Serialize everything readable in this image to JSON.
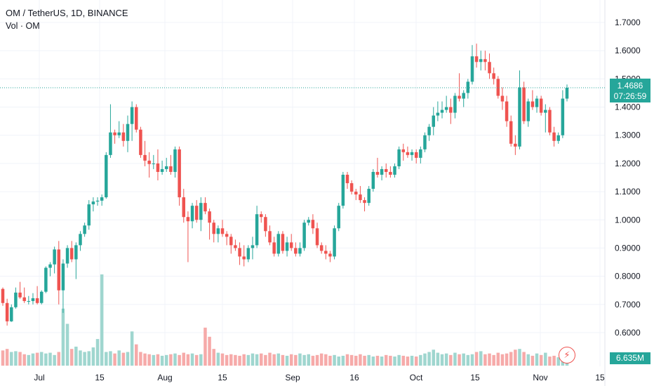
{
  "legend": {
    "title": "OM / TetherUS, 1D, BINANCE",
    "volume_label": "Vol · OM"
  },
  "price_tag": {
    "price": "1.4686",
    "countdown": "07:26:59"
  },
  "volume_tag": "6.635M",
  "icons": {
    "alert": "lightning-bolt-icon"
  },
  "colors": {
    "up": "#26a69a",
    "down": "#ef5350",
    "vol_up": "#9fd6cf",
    "vol_down": "#f6aaa9",
    "grid": "#f0f3fa",
    "last_price_line": "#26a69a"
  },
  "chart_data": {
    "type": "candlestick",
    "symbol": "OM / TetherUS",
    "interval": "1D",
    "exchange": "BINANCE",
    "y_ticks": [
      "1.7000",
      "1.6000",
      "1.5000",
      "1.4000",
      "1.3000",
      "1.2000",
      "1.1000",
      "1.0000",
      "0.9000",
      "0.8000",
      "0.7000",
      "0.6000"
    ],
    "y_range": [
      0.56,
      1.735
    ],
    "x_ticks": [
      "Jul",
      "15",
      "Aug",
      "15",
      "Sep",
      "16",
      "Oct",
      "15",
      "Nov",
      "15"
    ],
    "last_price": 1.4686,
    "grid": "on",
    "candles": [
      [
        0.755,
        0.76,
        0.695,
        0.705
      ],
      [
        0.705,
        0.72,
        0.625,
        0.64
      ],
      [
        0.64,
        0.7,
        0.638,
        0.69
      ],
      [
        0.69,
        0.76,
        0.685,
        0.742
      ],
      [
        0.742,
        0.78,
        0.72,
        0.725
      ],
      [
        0.725,
        0.76,
        0.705,
        0.712
      ],
      [
        0.712,
        0.73,
        0.7,
        0.712
      ],
      [
        0.712,
        0.74,
        0.7,
        0.722
      ],
      [
        0.722,
        0.765,
        0.7,
        0.705
      ],
      [
        0.705,
        0.75,
        0.7,
        0.745
      ],
      [
        0.745,
        0.835,
        0.74,
        0.83
      ],
      [
        0.83,
        0.85,
        0.8,
        0.842
      ],
      [
        0.842,
        0.905,
        0.81,
        0.895
      ],
      [
        0.895,
        0.925,
        0.7,
        0.75
      ],
      [
        0.75,
        0.86,
        0.67,
        0.845
      ],
      [
        0.845,
        0.91,
        0.83,
        0.9
      ],
      [
        0.9,
        0.925,
        0.85,
        0.86
      ],
      [
        0.86,
        0.92,
        0.79,
        0.91
      ],
      [
        0.91,
        0.96,
        0.89,
        0.95
      ],
      [
        0.95,
        0.99,
        0.94,
        0.98
      ],
      [
        0.98,
        1.07,
        0.965,
        1.055
      ],
      [
        1.055,
        1.08,
        1.03,
        1.065
      ],
      [
        1.065,
        1.08,
        1.05,
        1.068
      ],
      [
        1.068,
        1.09,
        1.05,
        1.08
      ],
      [
        1.08,
        1.24,
        1.075,
        1.23
      ],
      [
        1.23,
        1.41,
        1.22,
        1.31
      ],
      [
        1.31,
        1.32,
        1.27,
        1.3
      ],
      [
        1.3,
        1.35,
        1.29,
        1.31
      ],
      [
        1.31,
        1.34,
        1.26,
        1.28
      ],
      [
        1.28,
        1.37,
        1.24,
        1.34
      ],
      [
        1.34,
        1.42,
        1.28,
        1.4
      ],
      [
        1.4,
        1.41,
        1.31,
        1.32
      ],
      [
        1.32,
        1.33,
        1.22,
        1.23
      ],
      [
        1.23,
        1.28,
        1.19,
        1.21
      ],
      [
        1.21,
        1.24,
        1.15,
        1.198
      ],
      [
        1.198,
        1.23,
        1.18,
        1.2
      ],
      [
        1.2,
        1.25,
        1.14,
        1.17
      ],
      [
        1.17,
        1.21,
        1.16,
        1.18
      ],
      [
        1.18,
        1.22,
        1.17,
        1.19
      ],
      [
        1.19,
        1.23,
        1.16,
        1.17
      ],
      [
        1.17,
        1.26,
        1.15,
        1.25
      ],
      [
        1.25,
        1.26,
        1.05,
        1.08
      ],
      [
        1.08,
        1.11,
        0.99,
        1.01
      ],
      [
        1.01,
        1.03,
        0.85,
        0.995
      ],
      [
        0.995,
        1.06,
        0.97,
        1.05
      ],
      [
        1.05,
        1.07,
        0.99,
        1.0
      ],
      [
        1.0,
        1.08,
        0.96,
        1.06
      ],
      [
        1.06,
        1.08,
        1.02,
        1.03
      ],
      [
        1.03,
        1.04,
        0.93,
        0.99
      ],
      [
        0.99,
        1.0,
        0.92,
        0.95
      ],
      [
        0.95,
        0.98,
        0.92,
        0.97
      ],
      [
        0.97,
        1.0,
        0.94,
        0.95
      ],
      [
        0.95,
        0.96,
        0.91,
        0.94
      ],
      [
        0.94,
        0.95,
        0.88,
        0.91
      ],
      [
        0.91,
        0.93,
        0.89,
        0.9
      ],
      [
        0.9,
        0.92,
        0.84,
        0.87
      ],
      [
        0.87,
        0.91,
        0.835,
        0.86
      ],
      [
        0.86,
        0.91,
        0.85,
        0.9
      ],
      [
        0.9,
        0.94,
        0.86,
        0.91
      ],
      [
        0.91,
        1.05,
        0.9,
        1.02
      ],
      [
        1.02,
        1.03,
        0.99,
        1.01
      ],
      [
        1.01,
        1.02,
        0.94,
        0.96
      ],
      [
        0.96,
        0.98,
        0.91,
        0.92
      ],
      [
        0.92,
        0.94,
        0.87,
        0.88
      ],
      [
        0.88,
        0.96,
        0.87,
        0.95
      ],
      [
        0.95,
        0.96,
        0.88,
        0.89
      ],
      [
        0.89,
        0.94,
        0.87,
        0.92
      ],
      [
        0.92,
        0.95,
        0.89,
        0.9
      ],
      [
        0.9,
        0.92,
        0.87,
        0.88
      ],
      [
        0.88,
        0.92,
        0.87,
        0.9
      ],
      [
        0.9,
        1.0,
        0.89,
        0.99
      ],
      [
        0.99,
        1.01,
        0.98,
        1.0
      ],
      [
        1.0,
        1.02,
        0.95,
        0.97
      ],
      [
        0.97,
        0.99,
        0.9,
        0.91
      ],
      [
        0.91,
        0.92,
        0.88,
        0.89
      ],
      [
        0.89,
        0.91,
        0.86,
        0.88
      ],
      [
        0.88,
        0.89,
        0.85,
        0.87
      ],
      [
        0.87,
        0.98,
        0.86,
        0.97
      ],
      [
        0.97,
        1.06,
        0.96,
        1.05
      ],
      [
        1.05,
        1.17,
        1.04,
        1.16
      ],
      [
        1.16,
        1.17,
        1.11,
        1.13
      ],
      [
        1.13,
        1.14,
        1.09,
        1.1
      ],
      [
        1.1,
        1.11,
        1.07,
        1.09
      ],
      [
        1.09,
        1.12,
        1.06,
        1.07
      ],
      [
        1.07,
        1.08,
        1.03,
        1.06
      ],
      [
        1.06,
        1.12,
        1.05,
        1.11
      ],
      [
        1.11,
        1.18,
        1.1,
        1.17
      ],
      [
        1.17,
        1.22,
        1.15,
        1.16
      ],
      [
        1.16,
        1.19,
        1.14,
        1.18
      ],
      [
        1.18,
        1.2,
        1.15,
        1.17
      ],
      [
        1.17,
        1.19,
        1.15,
        1.16
      ],
      [
        1.16,
        1.2,
        1.15,
        1.19
      ],
      [
        1.19,
        1.26,
        1.18,
        1.25
      ],
      [
        1.25,
        1.27,
        1.21,
        1.24
      ],
      [
        1.24,
        1.26,
        1.22,
        1.23
      ],
      [
        1.23,
        1.25,
        1.21,
        1.24
      ],
      [
        1.24,
        1.25,
        1.2,
        1.22
      ],
      [
        1.22,
        1.26,
        1.2,
        1.25
      ],
      [
        1.25,
        1.31,
        1.24,
        1.3
      ],
      [
        1.3,
        1.34,
        1.28,
        1.33
      ],
      [
        1.33,
        1.4,
        1.3,
        1.37
      ],
      [
        1.37,
        1.42,
        1.35,
        1.38
      ],
      [
        1.38,
        1.42,
        1.36,
        1.39
      ],
      [
        1.39,
        1.44,
        1.38,
        1.4
      ],
      [
        1.4,
        1.43,
        1.34,
        1.38
      ],
      [
        1.38,
        1.45,
        1.36,
        1.44
      ],
      [
        1.44,
        1.52,
        1.42,
        1.43
      ],
      [
        1.43,
        1.46,
        1.4,
        1.45
      ],
      [
        1.45,
        1.5,
        1.43,
        1.49
      ],
      [
        1.49,
        1.62,
        1.48,
        1.58
      ],
      [
        1.58,
        1.625,
        1.54,
        1.56
      ],
      [
        1.56,
        1.6,
        1.53,
        1.57
      ],
      [
        1.57,
        1.6,
        1.53,
        1.56
      ],
      [
        1.56,
        1.59,
        1.5,
        1.52
      ],
      [
        1.52,
        1.54,
        1.48,
        1.5
      ],
      [
        1.5,
        1.51,
        1.43,
        1.44
      ],
      [
        1.44,
        1.47,
        1.39,
        1.42
      ],
      [
        1.42,
        1.44,
        1.33,
        1.35
      ],
      [
        1.35,
        1.37,
        1.26,
        1.27
      ],
      [
        1.27,
        1.3,
        1.23,
        1.26
      ],
      [
        1.26,
        1.53,
        1.25,
        1.47
      ],
      [
        1.47,
        1.49,
        1.34,
        1.35
      ],
      [
        1.35,
        1.43,
        1.33,
        1.42
      ],
      [
        1.42,
        1.46,
        1.39,
        1.4
      ],
      [
        1.4,
        1.44,
        1.38,
        1.43
      ],
      [
        1.43,
        1.44,
        1.37,
        1.38
      ],
      [
        1.38,
        1.41,
        1.31,
        1.39
      ],
      [
        1.39,
        1.4,
        1.3,
        1.31
      ],
      [
        1.31,
        1.33,
        1.26,
        1.28
      ],
      [
        1.28,
        1.31,
        1.27,
        1.3
      ],
      [
        1.3,
        1.46,
        1.29,
        1.43
      ],
      [
        1.43,
        1.48,
        1.42,
        1.4686
      ]
    ],
    "volumes": [
      20,
      22,
      18,
      19,
      18,
      15,
      14,
      16,
      17,
      18,
      16,
      17,
      14,
      18,
      75,
      55,
      22,
      25,
      20,
      18,
      19,
      24,
      35,
      120,
      18,
      19,
      16,
      20,
      17,
      18,
      45,
      28,
      18,
      16,
      15,
      14,
      15,
      13,
      14,
      15,
      16,
      14,
      17,
      15,
      16,
      14,
      15,
      50,
      38,
      22,
      17,
      16,
      14,
      15,
      14,
      13,
      15,
      14,
      16,
      15,
      16,
      14,
      17,
      15,
      16,
      14,
      13,
      15,
      14,
      16,
      14,
      15,
      13,
      14,
      16,
      15,
      13,
      14,
      12,
      13,
      15,
      14,
      13,
      15,
      13,
      14,
      12,
      13,
      12,
      14,
      13,
      12,
      14,
      13,
      12,
      13,
      12,
      14,
      16,
      18,
      21,
      17,
      15,
      16,
      14,
      17,
      15,
      16,
      14,
      15,
      18,
      19,
      15,
      16,
      14,
      17,
      15,
      16,
      18,
      21,
      22,
      18,
      15,
      13,
      16,
      14,
      17,
      12,
      13,
      11,
      14,
      9
    ]
  }
}
